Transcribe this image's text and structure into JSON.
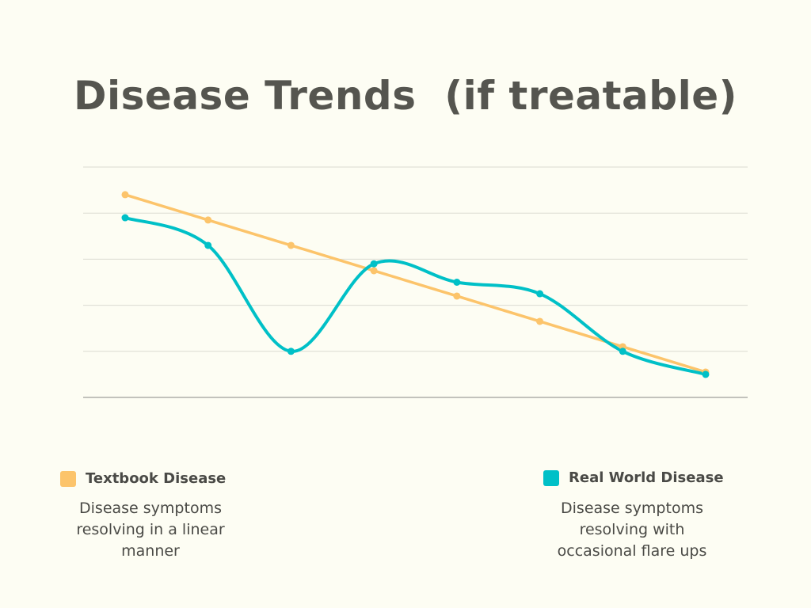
{
  "title": "Disease Trends  (if treatable)",
  "colors": {
    "textbook": "#fcc46b",
    "real": "#00c0c7",
    "grid": "#dcdcd2",
    "axis": "#a0a09a"
  },
  "chart_data": {
    "type": "line",
    "title": "Disease Trends  (if treatable)",
    "xlabel": "",
    "ylabel": "",
    "x": [
      1,
      2,
      3,
      4,
      5,
      6,
      7,
      8
    ],
    "ylim": [
      0,
      5
    ],
    "y_grid_values": [
      0,
      1,
      2,
      3,
      4,
      5
    ],
    "grid": true,
    "legend_placement": "bottom",
    "series": [
      {
        "name": "Textbook Disease",
        "color": "#fcc46b",
        "smooth": false,
        "values": [
          4.4,
          3.85,
          3.3,
          2.75,
          2.2,
          1.65,
          1.1,
          0.55
        ]
      },
      {
        "name": "Real World Disease",
        "color": "#00c0c7",
        "smooth": true,
        "values": [
          3.9,
          3.3,
          1.0,
          2.9,
          2.5,
          2.25,
          1.0,
          0.5
        ]
      }
    ]
  },
  "legend": {
    "textbook": {
      "label": "Textbook Disease",
      "desc_lines": [
        "Disease symptoms",
        "resolving in a linear",
        "manner"
      ]
    },
    "real": {
      "label": "Real World Disease",
      "desc_lines": [
        "Disease symptoms",
        "resolving with",
        "occasional flare ups"
      ]
    }
  }
}
